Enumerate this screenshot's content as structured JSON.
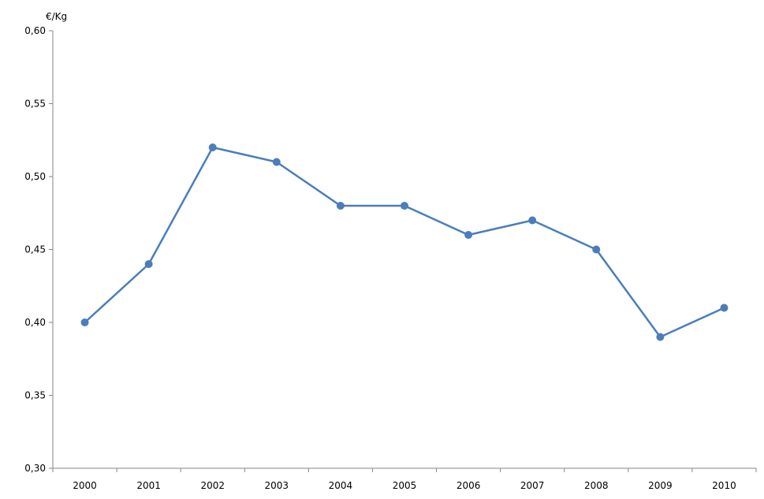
{
  "chart_data": {
    "type": "line",
    "title": "",
    "xlabel": "",
    "ylabel": "€/Kg",
    "categories": [
      "2000",
      "2001",
      "2002",
      "2003",
      "2004",
      "2005",
      "2006",
      "2007",
      "2008",
      "2009",
      "2010"
    ],
    "series": [
      {
        "values": [
          0.4,
          0.44,
          0.52,
          0.51,
          0.48,
          0.48,
          0.46,
          0.47,
          0.45,
          0.39,
          0.41
        ]
      }
    ],
    "ylim": [
      0.3,
      0.6
    ],
    "yticks": [
      "0,30",
      "0,35",
      "0,40",
      "0,45",
      "0,50",
      "0,55",
      "0,60"
    ],
    "grid": false,
    "legend": "none",
    "colors": {
      "line": "#4a7ebb",
      "axis": "#868686"
    }
  }
}
